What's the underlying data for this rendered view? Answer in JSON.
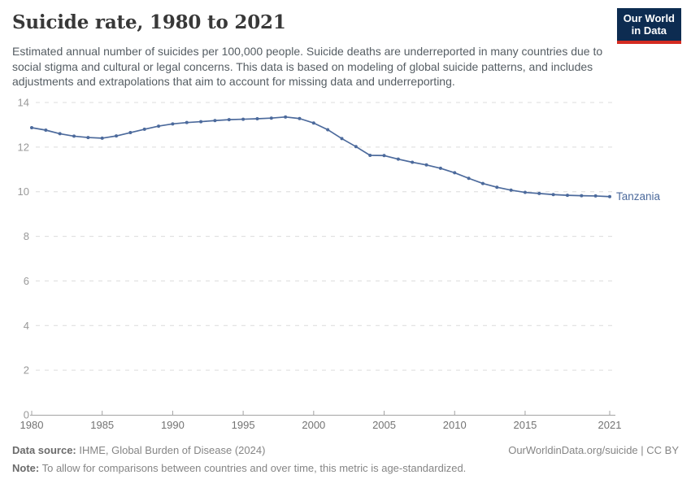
{
  "header": {
    "title": "Suicide rate, 1980 to 2021",
    "subtitle": "Estimated annual number of suicides per 100,000 people. Suicide deaths are underreported in many countries due to social stigma and cultural or legal concerns. This data is based on modeling of global suicide patterns, and includes adjustments and extrapolations that aim to account for missing data and underreporting."
  },
  "logo": {
    "line1": "Our World",
    "line2": "in Data",
    "bg_color": "#0d2c51",
    "bar_color": "#d42b21"
  },
  "footer": {
    "source_label": "Data source:",
    "source_text": " IHME, Global Burden of Disease (2024)",
    "url_text": "OurWorldinData.org/suicide | CC BY",
    "note_label": "Note:",
    "note_text": " To allow for comparisons between countries and over time, this metric is age-standardized."
  },
  "chart_data": {
    "type": "line",
    "title": "Suicide rate, 1980 to 2021",
    "xlabel": "",
    "ylabel": "",
    "xlim": [
      1980,
      2021
    ],
    "ylim": [
      0,
      14
    ],
    "yticks": [
      0,
      2,
      4,
      6,
      8,
      10,
      12,
      14
    ],
    "xticks": [
      1980,
      1985,
      1990,
      1995,
      2000,
      2005,
      2010,
      2015,
      2021
    ],
    "grid": "horizontal-dashed",
    "grid_color": "#dcdcdc",
    "axis_color": "#a3a3a3",
    "y_tick_label_color": "#999999",
    "x_tick_label_color": "#737373",
    "legend_position": "end-of-line-label",
    "x": [
      1980,
      1981,
      1982,
      1983,
      1984,
      1985,
      1986,
      1987,
      1988,
      1989,
      1990,
      1991,
      1992,
      1993,
      1994,
      1995,
      1996,
      1997,
      1998,
      1999,
      2000,
      2001,
      2002,
      2003,
      2004,
      2005,
      2006,
      2007,
      2008,
      2009,
      2010,
      2011,
      2012,
      2013,
      2014,
      2015,
      2016,
      2017,
      2018,
      2019,
      2020,
      2021
    ],
    "series": [
      {
        "name": "Tanzania",
        "color": "#4c6a9c",
        "values": [
          12.87,
          12.76,
          12.6,
          12.49,
          12.43,
          12.4,
          12.5,
          12.65,
          12.8,
          12.94,
          13.04,
          13.1,
          13.14,
          13.19,
          13.23,
          13.25,
          13.27,
          13.3,
          13.35,
          13.28,
          13.08,
          12.78,
          12.38,
          12.02,
          11.63,
          11.62,
          11.46,
          11.32,
          11.2,
          11.05,
          10.85,
          10.6,
          10.37,
          10.2,
          10.07,
          9.97,
          9.92,
          9.87,
          9.84,
          9.82,
          9.81,
          9.78
        ]
      }
    ]
  }
}
